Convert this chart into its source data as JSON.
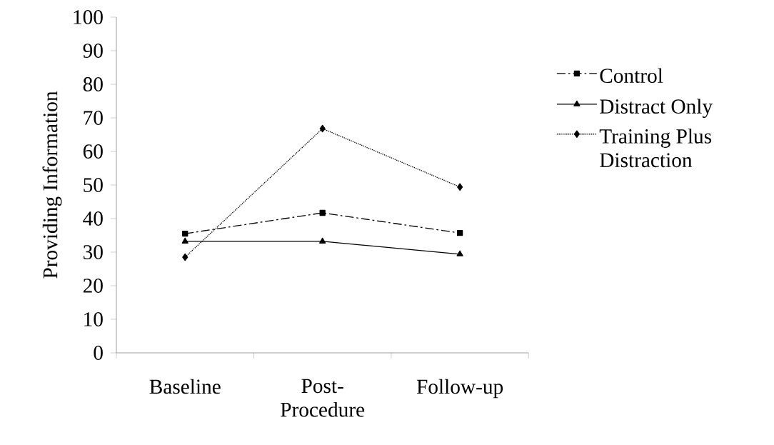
{
  "chart_data": {
    "type": "line",
    "ylabel": "Providing Information",
    "categories": [
      "Baseline",
      "Post-Procedure",
      "Follow-up"
    ],
    "series": [
      {
        "name": "Control",
        "color": "#000000",
        "values": [
          35.5,
          41.7,
          35.7
        ],
        "marker": "square",
        "line_style": "dashdot"
      },
      {
        "name": "Distract Only",
        "color": "#000000",
        "values": [
          33.2,
          33.2,
          29.4
        ],
        "marker": "triangle",
        "line_style": "solid"
      },
      {
        "name": "Training Plus Distraction",
        "color": "#000000",
        "values": [
          28.5,
          66.8,
          49.4
        ],
        "marker": "diamond",
        "line_style": "dotted"
      }
    ],
    "ylim": [
      0,
      100
    ],
    "yticks": [
      0,
      10,
      20,
      30,
      40,
      50,
      60,
      70,
      80,
      90,
      100
    ],
    "grid": false,
    "legend": "right"
  }
}
